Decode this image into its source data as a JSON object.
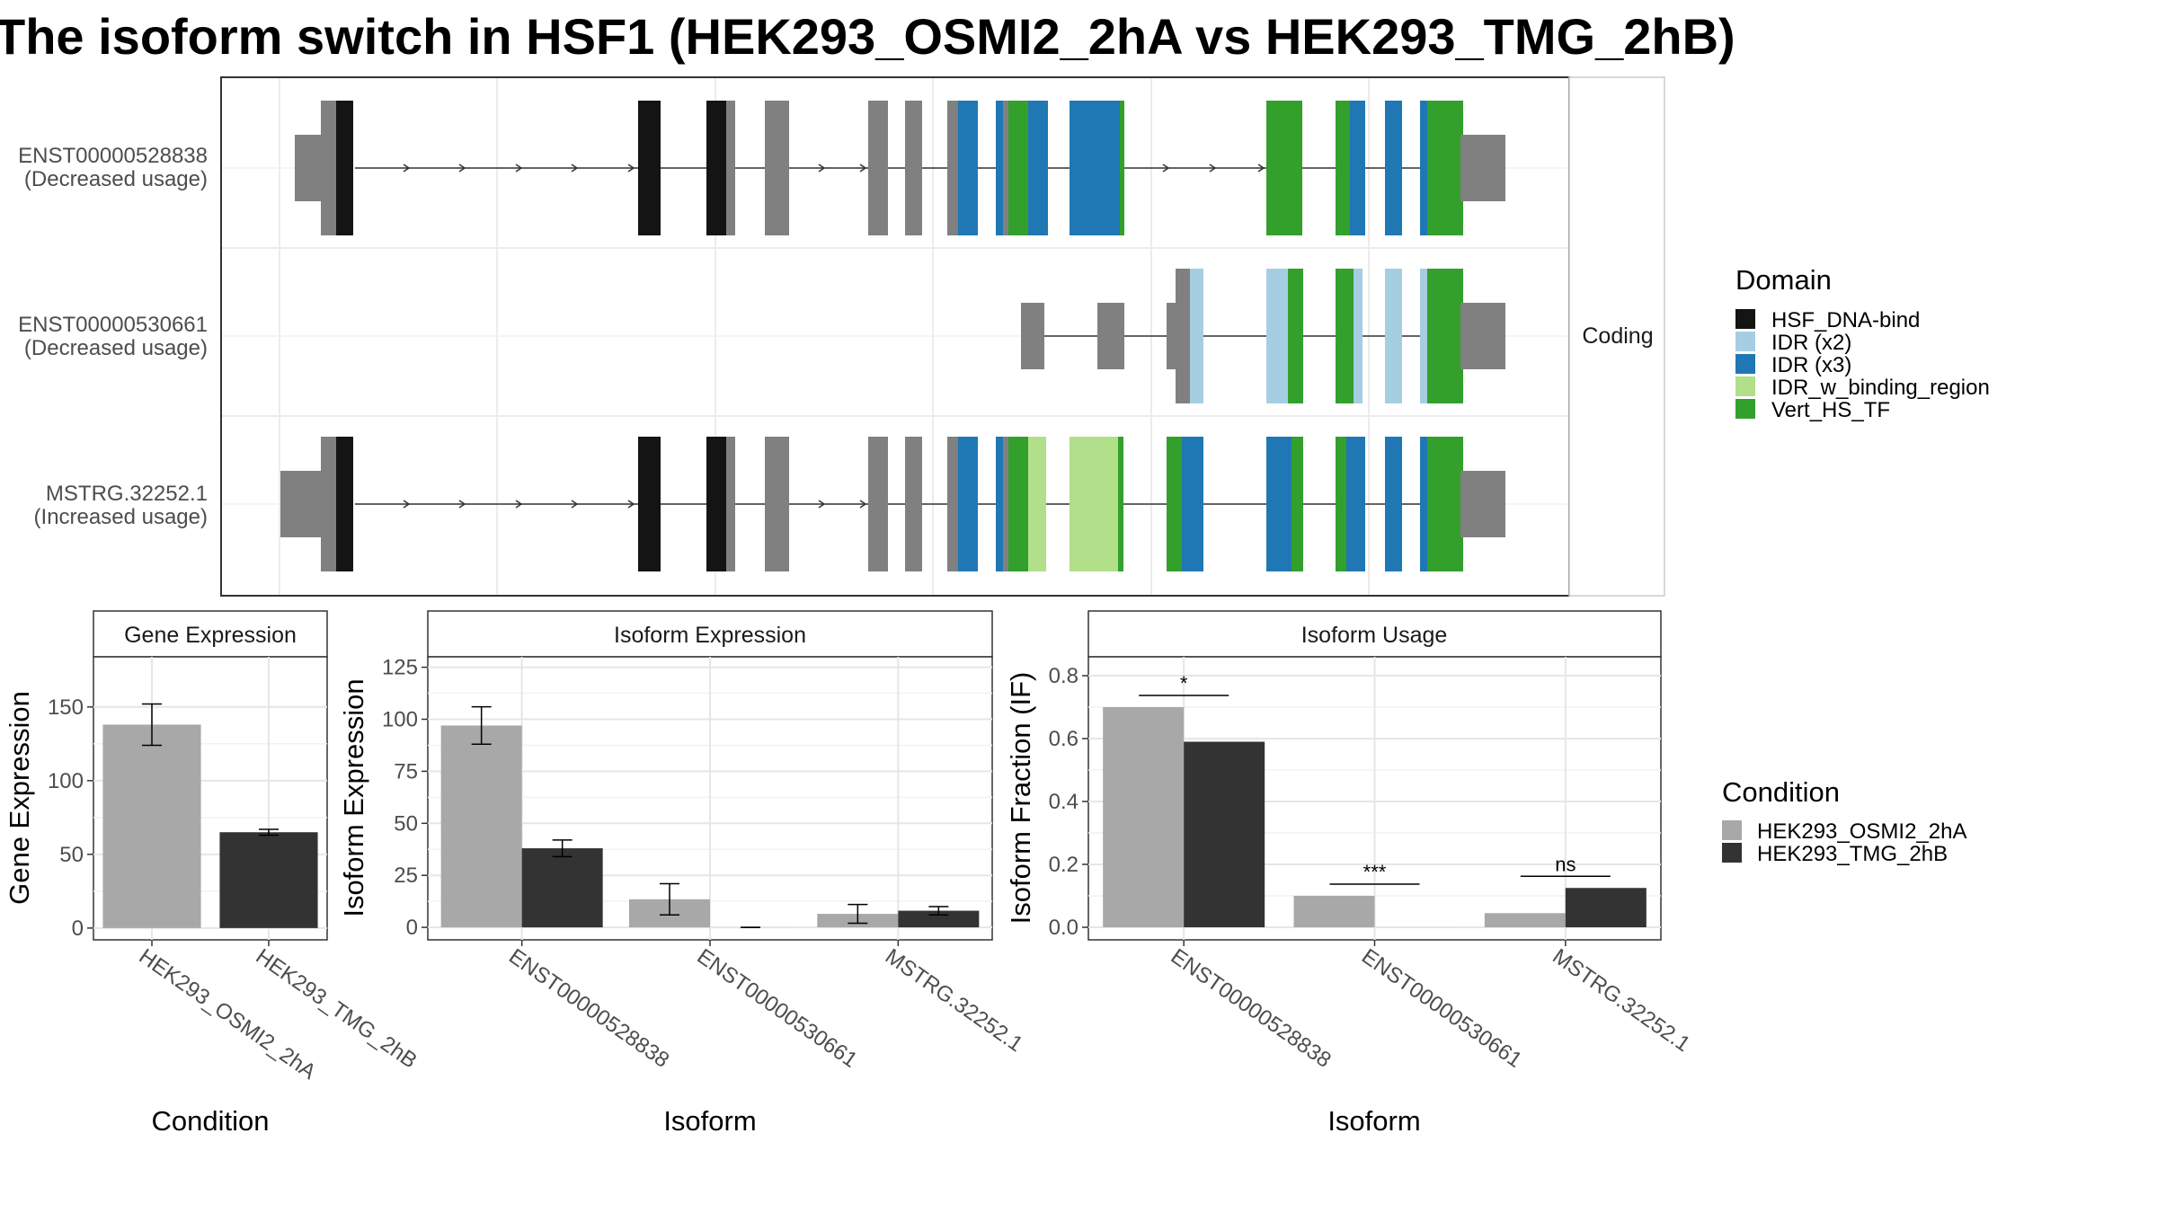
{
  "title": "The isoform switch in HSF1 (HEK293_OSMI2_2hA vs HEK293_TMG_2hB)",
  "colors": {
    "HSF_DNA-bind": "#141414",
    "IDR (x2)": "#a6cee3",
    "IDR (x3)": "#1f78b4",
    "IDR_w_binding_region": "#b2df8a",
    "Vert_HS_TF": "#33a02c",
    "utr": "#808080",
    "cond_a": "#a8a8a8",
    "cond_b": "#333333"
  },
  "structure": {
    "facet_label": "Coding",
    "isoforms": [
      {
        "id": "ENST00000528838",
        "usage": "(Decreased usage)"
      },
      {
        "id": "ENST00000530661",
        "usage": "(Decreased usage)"
      },
      {
        "id": "MSTRG.32252.1",
        "usage": "(Increased usage)"
      }
    ],
    "legend": {
      "title": "Domain",
      "items": [
        "HSF_DNA-bind",
        "IDR (x2)",
        "IDR (x3)",
        "IDR_w_binding_region",
        "Vert_HS_TF"
      ]
    }
  },
  "condition_legend": {
    "title": "Condition",
    "items": [
      "HEK293_OSMI2_2hA",
      "HEK293_TMG_2hB"
    ]
  },
  "chart_data": [
    {
      "type": "bar",
      "title": "Gene Expression",
      "xlabel": "Condition",
      "ylabel": "Gene Expression",
      "categories": [
        "HEK293_OSMI2_2hA",
        "HEK293_TMG_2hB"
      ],
      "values": [
        138,
        65
      ],
      "errors": [
        [
          124,
          152
        ],
        [
          63,
          67
        ]
      ],
      "ylim": [
        -8,
        184
      ],
      "yticks": [
        0,
        50,
        100,
        150
      ],
      "grid": true
    },
    {
      "type": "bar",
      "title": "Isoform Expression",
      "xlabel": "Isoform",
      "ylabel": "Isoform Expression",
      "categories": [
        "ENST00000528838",
        "ENST00000530661",
        "MSTRG.32252.1"
      ],
      "series": [
        {
          "name": "HEK293_OSMI2_2hA",
          "values": [
            97,
            13.5,
            6.5
          ],
          "errors": [
            [
              88,
              106
            ],
            [
              6,
              21
            ],
            [
              2,
              11
            ]
          ]
        },
        {
          "name": "HEK293_TMG_2hB",
          "values": [
            38,
            0,
            8
          ],
          "errors": [
            [
              34,
              42
            ],
            [
              0,
              0
            ],
            [
              6,
              10
            ]
          ]
        }
      ],
      "ylim": [
        -6,
        130
      ],
      "yticks": [
        0,
        25,
        50,
        75,
        100,
        125
      ],
      "grid": true
    },
    {
      "type": "bar",
      "title": "Isoform Usage",
      "xlabel": "Isoform",
      "ylabel": "Isoform Fraction (IF)",
      "categories": [
        "ENST00000528838",
        "ENST00000530661",
        "MSTRG.32252.1"
      ],
      "series": [
        {
          "name": "HEK293_OSMI2_2hA",
          "values": [
            0.7,
            0.1,
            0.045
          ]
        },
        {
          "name": "HEK293_TMG_2hB",
          "values": [
            0.59,
            0,
            0.125
          ]
        }
      ],
      "significance": [
        "*",
        "***",
        "ns"
      ],
      "ylim": [
        -0.04,
        0.86
      ],
      "yticks": [
        0.0,
        0.2,
        0.4,
        0.6,
        0.8
      ],
      "grid": true
    }
  ]
}
